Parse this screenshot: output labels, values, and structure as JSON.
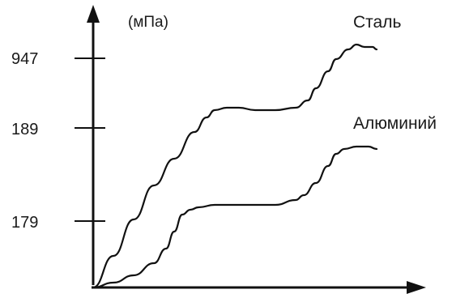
{
  "chart_data": {
    "type": "line",
    "title": "",
    "xlabel": "",
    "ylabel": "(мПа)",
    "y_ticks": [
      "947",
      "189",
      "179"
    ],
    "series": [
      {
        "name": "Сталь",
        "color": "#111111",
        "x": [
          0,
          0.05,
          0.1,
          0.15,
          0.2,
          0.25,
          0.28,
          0.3,
          0.33,
          0.36,
          0.4,
          0.45,
          0.5,
          0.53,
          0.55,
          0.58,
          0.6,
          0.63,
          0.65,
          0.67,
          0.69,
          0.7
        ],
        "y": [
          0.0,
          0.13,
          0.28,
          0.42,
          0.53,
          0.64,
          0.7,
          0.73,
          0.74,
          0.74,
          0.73,
          0.73,
          0.74,
          0.77,
          0.82,
          0.89,
          0.94,
          0.98,
          1.0,
          0.99,
          0.99,
          0.98
        ]
      },
      {
        "name": "Алюминий",
        "color": "#111111",
        "x": [
          0,
          0.05,
          0.1,
          0.15,
          0.18,
          0.2,
          0.22,
          0.24,
          0.26,
          0.3,
          0.35,
          0.4,
          0.45,
          0.5,
          0.52,
          0.55,
          0.58,
          0.6,
          0.62,
          0.65,
          0.68,
          0.7
        ],
        "y": [
          0.0,
          0.02,
          0.05,
          0.1,
          0.16,
          0.23,
          0.3,
          0.32,
          0.33,
          0.34,
          0.34,
          0.34,
          0.34,
          0.36,
          0.38,
          0.43,
          0.5,
          0.55,
          0.57,
          0.58,
          0.58,
          0.57
        ]
      }
    ],
    "grid": false,
    "legend": "none"
  }
}
